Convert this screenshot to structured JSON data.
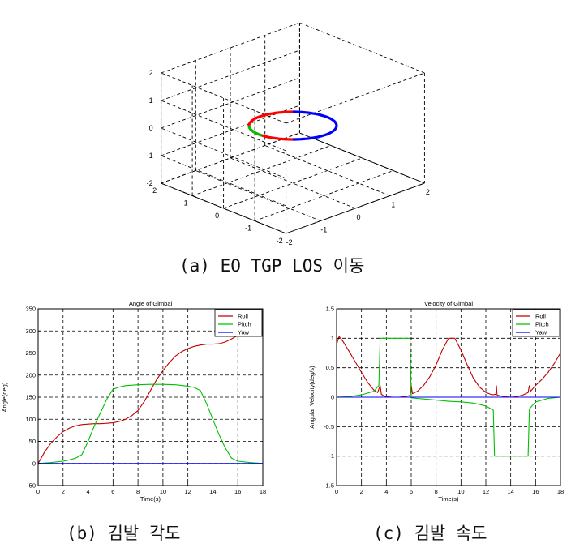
{
  "captions": {
    "a": "(a) EO TGP LOS 이동",
    "b": "(b) 김발 각도",
    "c": "(c) 김발 속도"
  },
  "chart_data": [
    {
      "id": "a",
      "type": "line",
      "dimensions": "3d",
      "grid": true,
      "title": "",
      "xlim": [
        -2,
        2
      ],
      "ylim": [
        -2,
        2
      ],
      "zlim": [
        -2,
        2
      ],
      "x_ticks": [
        -2,
        -1,
        0,
        1,
        2
      ],
      "y_ticks": [
        -2,
        -1,
        0,
        1,
        2
      ],
      "z_ticks": [
        -2,
        -1,
        0,
        1,
        2
      ],
      "z_level": 0,
      "radius": 1,
      "segments": [
        {
          "color": "#ff0000",
          "from_deg": 90,
          "to_deg": 270
        },
        {
          "color": "#00c000",
          "from_deg": 180,
          "to_deg": 225
        },
        {
          "color": "#0000ff",
          "from_deg": 270,
          "to_deg": 450
        }
      ]
    },
    {
      "id": "b",
      "type": "line",
      "title": "Angle of Gimbal",
      "xlabel": "Time(s)",
      "ylabel": "Angle(deg)",
      "xlim": [
        0,
        18
      ],
      "ylim": [
        -50,
        350
      ],
      "x_ticks": [
        0,
        2,
        4,
        6,
        8,
        10,
        12,
        14,
        16,
        18
      ],
      "y_ticks": [
        -50,
        0,
        50,
        100,
        150,
        200,
        250,
        300,
        350
      ],
      "grid": true,
      "legend": "top-right",
      "series": [
        {
          "name": "Roll",
          "color": "#c00000",
          "x": [
            0,
            0.5,
            1,
            1.5,
            2,
            2.5,
            3,
            3.5,
            4,
            4.5,
            5,
            5.5,
            6,
            6.5,
            7,
            7.5,
            8,
            8.5,
            9,
            9.5,
            10,
            10.5,
            11,
            11.5,
            12,
            12.5,
            13,
            13.5,
            14,
            14.5,
            15,
            15.5,
            16,
            16.5,
            17,
            17.5,
            18
          ],
          "y": [
            0,
            25,
            45,
            60,
            72,
            80,
            85,
            88,
            89,
            90,
            90,
            91,
            92,
            95,
            100,
            108,
            120,
            140,
            165,
            190,
            210,
            228,
            243,
            253,
            260,
            265,
            268,
            270,
            270,
            271,
            275,
            282,
            290,
            298,
            305,
            312,
            318
          ]
        },
        {
          "name": "Pitch",
          "color": "#00c000",
          "x": [
            0,
            1,
            2,
            2.5,
            3,
            3.5,
            4,
            4.5,
            5,
            5.5,
            6,
            6.5,
            7,
            8,
            9,
            10,
            11,
            12,
            12.5,
            13,
            13.5,
            14,
            14.5,
            15,
            15.5,
            16,
            17,
            18
          ],
          "y": [
            0,
            2,
            5,
            8,
            12,
            20,
            50,
            85,
            115,
            145,
            168,
            173,
            176,
            178,
            179,
            179,
            178,
            175,
            172,
            165,
            135,
            100,
            65,
            35,
            12,
            5,
            2,
            0
          ]
        },
        {
          "name": "Yaw",
          "color": "#0000ff",
          "x": [
            0,
            18
          ],
          "y": [
            0,
            0
          ]
        }
      ]
    },
    {
      "id": "c",
      "type": "line",
      "title": "Velocity of Gimbal",
      "xlabel": "Time(s)",
      "ylabel": "Angular Velocity(deg/s)",
      "xlim": [
        0,
        18
      ],
      "ylim": [
        -1.5,
        1.5
      ],
      "x_ticks": [
        0,
        2,
        4,
        6,
        8,
        10,
        12,
        14,
        16,
        18
      ],
      "y_ticks": [
        -1.5,
        -1,
        -0.5,
        0,
        0.5,
        1,
        1.5
      ],
      "grid": true,
      "legend": "top-right",
      "series": [
        {
          "name": "Roll",
          "color": "#c00000",
          "x": [
            0,
            0.2,
            0.5,
            1,
            1.5,
            2,
            2.5,
            3,
            3.3,
            3.5,
            3.6,
            3.8,
            4,
            4.5,
            5,
            5.5,
            5.9,
            6,
            6.1,
            6.5,
            7,
            7.5,
            8,
            8.5,
            9,
            9.5,
            10,
            10.5,
            11,
            11.5,
            12,
            12.5,
            12.8,
            12.85,
            12.9,
            13,
            13.5,
            14,
            14.5,
            15,
            15.4,
            15.5,
            15.6,
            16,
            16.5,
            17,
            17.5,
            18
          ],
          "y": [
            0.9,
            1.03,
            0.95,
            0.78,
            0.6,
            0.42,
            0.25,
            0.12,
            0.08,
            0.2,
            0.05,
            0.02,
            0.01,
            0,
            0,
            0.01,
            0.03,
            0.2,
            0.06,
            0.1,
            0.2,
            0.35,
            0.55,
            0.8,
            1.0,
            1.0,
            0.8,
            0.55,
            0.32,
            0.17,
            0.08,
            0.04,
            0.05,
            0.2,
            0.04,
            0.03,
            0.01,
            0,
            0.01,
            0.04,
            0.08,
            0.2,
            0.1,
            0.2,
            0.3,
            0.42,
            0.57,
            0.75
          ]
        },
        {
          "name": "Pitch",
          "color": "#00c000",
          "x": [
            0,
            1,
            2,
            3,
            3.4,
            3.5,
            5.9,
            6,
            6.5,
            7,
            8,
            9,
            10,
            11,
            12,
            12.6,
            12.7,
            15.4,
            15.5,
            16,
            17,
            18
          ],
          "y": [
            0,
            0.01,
            0.04,
            0.1,
            0.2,
            1.0,
            1.0,
            -0.01,
            -0.02,
            -0.03,
            -0.05,
            -0.07,
            -0.08,
            -0.1,
            -0.15,
            -0.22,
            -1.0,
            -1.0,
            -0.2,
            -0.08,
            -0.02,
            0
          ]
        },
        {
          "name": "Yaw",
          "color": "#0000ff",
          "x": [
            0,
            18
          ],
          "y": [
            0,
            0
          ]
        }
      ]
    }
  ]
}
